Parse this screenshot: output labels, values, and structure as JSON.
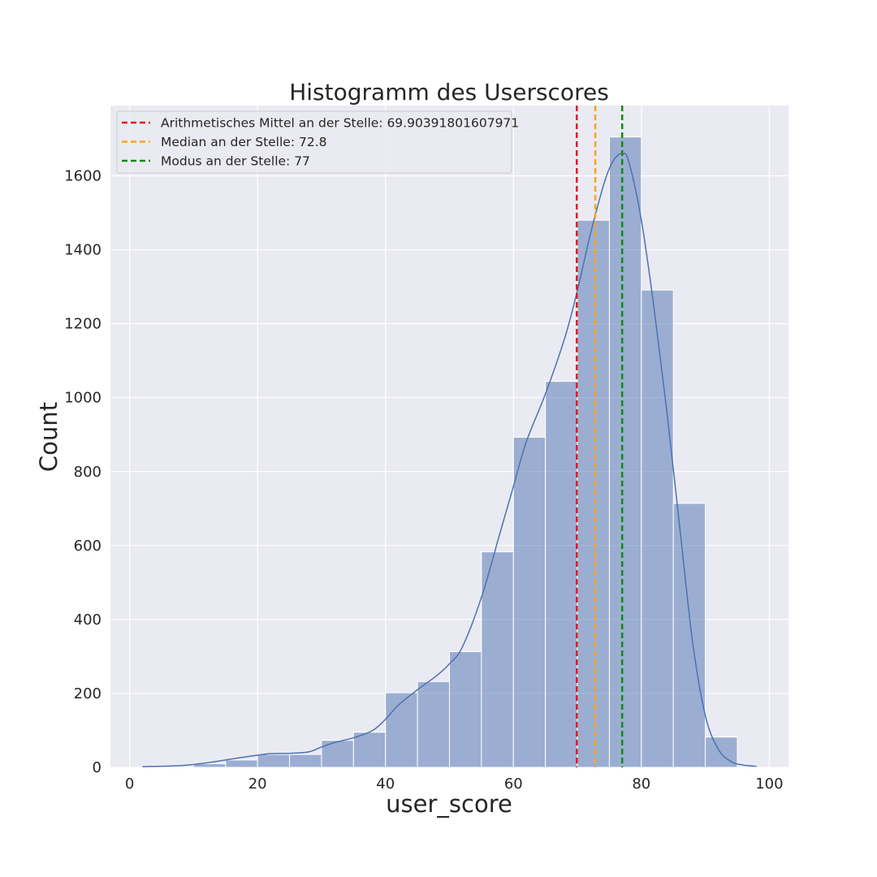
{
  "chart_data": {
    "type": "bar",
    "title": "Histogramm des Userscores",
    "xlabel": "user_score",
    "ylabel": "Count",
    "xlim": [
      -3,
      103
    ],
    "ylim": [
      0,
      1790
    ],
    "x_ticks": [
      0,
      20,
      40,
      60,
      80,
      100
    ],
    "y_ticks": [
      0,
      200,
      400,
      600,
      800,
      1000,
      1200,
      1400,
      1600
    ],
    "grid": true,
    "legend_position": "top-left",
    "bar_color": "#4c72b0",
    "kde_color": "#4c72b0",
    "bins": [
      {
        "start": 10,
        "end": 15,
        "value": 10
      },
      {
        "start": 15,
        "end": 20,
        "value": 20
      },
      {
        "start": 20,
        "end": 25,
        "value": 35
      },
      {
        "start": 25,
        "end": 30,
        "value": 35
      },
      {
        "start": 30,
        "end": 35,
        "value": 73
      },
      {
        "start": 35,
        "end": 40,
        "value": 95
      },
      {
        "start": 40,
        "end": 45,
        "value": 202
      },
      {
        "start": 45,
        "end": 50,
        "value": 232
      },
      {
        "start": 50,
        "end": 55,
        "value": 313
      },
      {
        "start": 55,
        "end": 60,
        "value": 583
      },
      {
        "start": 60,
        "end": 65,
        "value": 893
      },
      {
        "start": 65,
        "end": 70,
        "value": 1044
      },
      {
        "start": 70,
        "end": 75,
        "value": 1480
      },
      {
        "start": 75,
        "end": 80,
        "value": 1705
      },
      {
        "start": 80,
        "end": 85,
        "value": 1291
      },
      {
        "start": 85,
        "end": 90,
        "value": 714
      },
      {
        "start": 90,
        "end": 95,
        "value": 82
      }
    ],
    "kde": {
      "x": [
        2,
        5,
        8,
        10,
        12,
        15,
        18,
        20,
        22,
        25,
        28,
        30,
        32,
        35,
        38,
        40,
        42,
        45,
        48,
        50,
        52,
        55,
        58,
        60,
        62,
        65,
        68,
        70,
        72,
        74,
        75,
        76,
        77,
        78,
        80,
        82,
        84,
        86,
        88,
        90,
        92,
        94,
        96,
        98
      ],
      "y": [
        2,
        3,
        5,
        8,
        12,
        20,
        28,
        33,
        37,
        38,
        42,
        55,
        67,
        80,
        100,
        130,
        168,
        210,
        248,
        280,
        325,
        460,
        640,
        760,
        880,
        1010,
        1160,
        1290,
        1440,
        1570,
        1620,
        1650,
        1660,
        1640,
        1480,
        1240,
        960,
        650,
        340,
        140,
        50,
        16,
        6,
        3
      ]
    },
    "reference_lines": [
      {
        "name": "Arithmetisches Mittel an der Stelle: 69.90391801607971",
        "x": 69.90391801607971,
        "color": "#e31a1c"
      },
      {
        "name": "Median an der Stelle: 72.8",
        "x": 72.8,
        "color": "#f5a623"
      },
      {
        "name": "Modus an der Stelle: 77",
        "x": 77,
        "color": "#138a13"
      }
    ]
  }
}
